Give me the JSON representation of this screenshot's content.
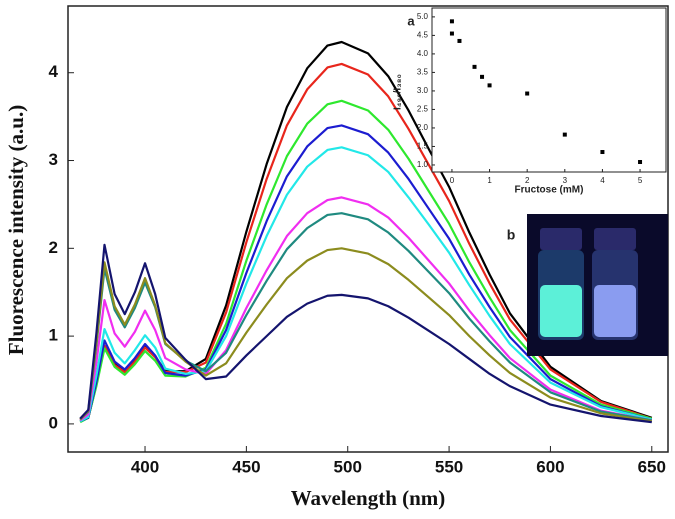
{
  "chart_data": [
    {
      "type": "line",
      "xlabel": "Wavelength (nm)",
      "ylabel": "Fluorescence intensity (a.u.)",
      "xlim": [
        362,
        658
      ],
      "ylim": [
        -0.32,
        4.76
      ],
      "xticks": [
        400,
        450,
        500,
        550,
        600,
        650
      ],
      "yticks": [
        0,
        1,
        2,
        3,
        4
      ],
      "x": [
        368,
        372,
        376,
        380,
        385,
        390,
        395,
        400,
        405,
        410,
        420,
        430,
        440,
        450,
        460,
        470,
        480,
        490,
        497,
        510,
        520,
        530,
        540,
        550,
        560,
        570,
        580,
        600,
        625,
        650
      ],
      "series": [
        {
          "color": "#000000",
          "values": [
            0.03,
            0.07,
            0.45,
            0.89,
            0.68,
            0.6,
            0.72,
            0.88,
            0.77,
            0.6,
            0.6,
            0.74,
            1.35,
            2.19,
            2.96,
            3.61,
            4.05,
            4.31,
            4.35,
            4.22,
            3.96,
            3.57,
            3.13,
            2.7,
            2.18,
            1.7,
            1.26,
            0.65,
            0.26,
            0.07
          ]
        },
        {
          "color": "#e8261c",
          "values": [
            0.03,
            0.07,
            0.45,
            0.89,
            0.67,
            0.59,
            0.71,
            0.87,
            0.76,
            0.59,
            0.59,
            0.7,
            1.27,
            2.07,
            2.79,
            3.4,
            3.81,
            4.06,
            4.1,
            3.98,
            3.73,
            3.36,
            2.95,
            2.54,
            2.05,
            1.6,
            1.19,
            0.62,
            0.25,
            0.06
          ]
        },
        {
          "color": "#2ee82e",
          "values": [
            0.02,
            0.07,
            0.43,
            0.86,
            0.65,
            0.56,
            0.68,
            0.83,
            0.72,
            0.55,
            0.54,
            0.64,
            1.14,
            1.86,
            2.5,
            3.05,
            3.42,
            3.64,
            3.68,
            3.57,
            3.35,
            3.02,
            2.65,
            2.28,
            1.84,
            1.44,
            1.07,
            0.55,
            0.22,
            0.06
          ]
        },
        {
          "color": "#1c1cd0",
          "values": [
            0.03,
            0.07,
            0.48,
            0.95,
            0.71,
            0.62,
            0.75,
            0.91,
            0.78,
            0.58,
            0.55,
            0.62,
            1.07,
            1.72,
            2.31,
            2.82,
            3.16,
            3.37,
            3.4,
            3.3,
            3.09,
            2.79,
            2.45,
            2.11,
            1.7,
            1.33,
            0.99,
            0.51,
            0.2,
            0.05
          ]
        },
        {
          "color": "#22e8e8",
          "values": [
            0.03,
            0.08,
            0.55,
            1.08,
            0.81,
            0.69,
            0.84,
            1.01,
            0.87,
            0.63,
            0.57,
            0.6,
            1.0,
            1.6,
            2.14,
            2.61,
            2.93,
            3.12,
            3.15,
            3.06,
            2.87,
            2.58,
            2.27,
            1.95,
            1.58,
            1.23,
            0.91,
            0.47,
            0.19,
            0.05
          ]
        },
        {
          "color": "#f02ef0",
          "values": [
            0.04,
            0.11,
            0.7,
            1.41,
            1.03,
            0.88,
            1.05,
            1.29,
            1.07,
            0.75,
            0.62,
            0.57,
            0.84,
            1.32,
            1.75,
            2.14,
            2.4,
            2.55,
            2.58,
            2.5,
            2.35,
            2.12,
            1.86,
            1.6,
            1.29,
            1.01,
            0.75,
            0.39,
            0.15,
            0.04
          ]
        },
        {
          "color": "#1f8a80",
          "values": [
            0.05,
            0.14,
            0.89,
            1.77,
            1.3,
            1.1,
            1.32,
            1.61,
            1.33,
            0.91,
            0.72,
            0.6,
            0.81,
            1.24,
            1.63,
            1.99,
            2.23,
            2.38,
            2.4,
            2.33,
            2.18,
            1.97,
            1.73,
            1.49,
            1.2,
            0.94,
            0.7,
            0.36,
            0.14,
            0.04
          ]
        },
        {
          "color": "#8c8c1e",
          "values": [
            0.05,
            0.15,
            0.92,
            1.84,
            1.34,
            1.13,
            1.36,
            1.66,
            1.35,
            0.92,
            0.71,
            0.55,
            0.69,
            1.04,
            1.36,
            1.66,
            1.86,
            1.98,
            2.0,
            1.94,
            1.82,
            1.64,
            1.44,
            1.24,
            1.0,
            0.78,
            0.58,
            0.3,
            0.12,
            0.03
          ]
        },
        {
          "color": "#14146e",
          "values": [
            0.06,
            0.16,
            1.03,
            2.04,
            1.48,
            1.25,
            1.5,
            1.83,
            1.48,
            0.98,
            0.73,
            0.51,
            0.54,
            0.78,
            1.0,
            1.22,
            1.37,
            1.46,
            1.47,
            1.43,
            1.34,
            1.21,
            1.06,
            0.91,
            0.74,
            0.57,
            0.43,
            0.22,
            0.09,
            0.02
          ]
        }
      ]
    },
    {
      "type": "scatter",
      "label": "a",
      "xlabel": "Fructose (mM)",
      "ylabel": "I₄₉₀/I₃₈₀",
      "xlim": [
        -0.53,
        5.69
      ],
      "ylim": [
        0.81,
        5.24
      ],
      "xticks": [
        0,
        1,
        2,
        3,
        4,
        5
      ],
      "yticks": [
        {
          "value": 1,
          "label": "1.0"
        },
        {
          "value": 1.5,
          "label": "1.5"
        },
        {
          "value": 2,
          "label": "2.0"
        },
        {
          "value": 2.5,
          "label": "2.5"
        },
        {
          "value": 3,
          "label": "3.0"
        },
        {
          "value": 3.5,
          "label": "3.5"
        },
        {
          "value": 4,
          "label": "4.0"
        },
        {
          "value": 4.5,
          "label": "4.5"
        },
        {
          "value": 5,
          "label": "5.0"
        }
      ],
      "color": "#000000",
      "x": [
        0,
        0,
        0.2,
        0.6,
        0.8,
        1,
        2,
        3,
        4,
        5
      ],
      "values": [
        4.88,
        4.55,
        4.35,
        3.65,
        3.38,
        3.15,
        2.93,
        1.82,
        1.35,
        1.08
      ]
    }
  ],
  "photo": {
    "label": "b"
  }
}
